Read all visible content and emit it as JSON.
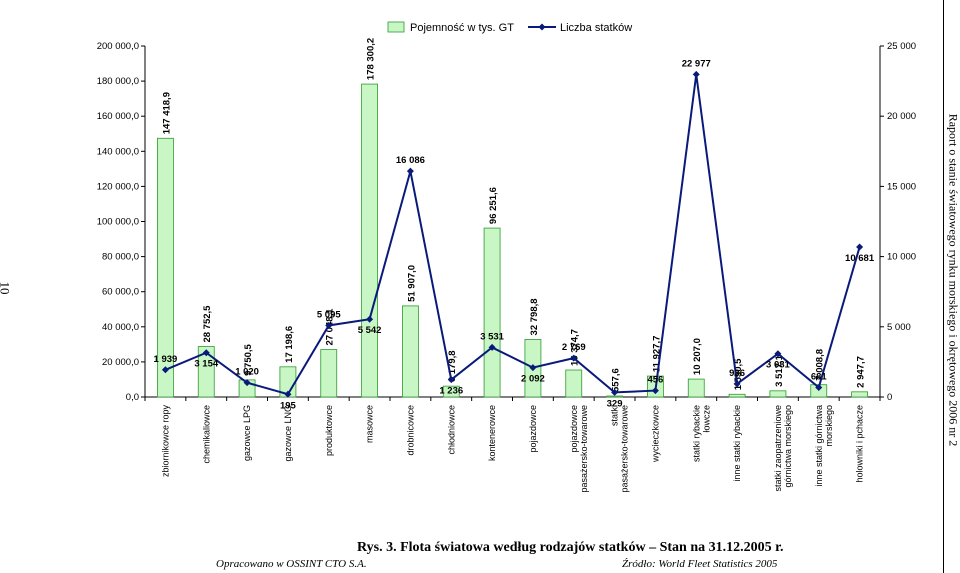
{
  "chart_data": {
    "type": "bar",
    "legend_position": "top",
    "categories": [
      "zbiornikowce ropy",
      "chemikaliowce",
      "gazowce LPG",
      "gazowce LNG",
      "produktowce",
      "masowce",
      "drobnicowce",
      "chłodniowce",
      "kontenerowce",
      "pojazdowce",
      "pojazdowce pasażersko-towarowe",
      "statki pasażersko-towarowe",
      "wycieczkowce",
      "statki rybackie łowcze",
      "inne statki rybackie",
      "statki zaopatrzeniowe górnictwa morskiego",
      "inne statki górnictwa morskiego",
      "holowniki i pchacze"
    ],
    "series": [
      {
        "name": "Pojemność w tys. GT",
        "type": "bar",
        "axis": "left",
        "color": "#c8f7c5",
        "edge": "#2e9a2e",
        "values": [
          147418.9,
          28752.5,
          9750.5,
          17198.6,
          27048.1,
          178300.2,
          51907.0,
          6179.8,
          96251.6,
          32798.8,
          15374.7,
          557.6,
          11927.7,
          10207.0,
          1550.5,
          3517.1,
          7008.8,
          2947.7
        ],
        "labels": [
          "147 418,9",
          "28 752,5",
          "9 750,5",
          "17 198,6",
          "27 048,1",
          "178 300,2",
          "51 907,0",
          "6 179,8",
          "96 251,6",
          "32 798,8",
          "15 374,7",
          "557,6",
          "11 927,7",
          "10 207,0",
          "1 550,5",
          "3 517,1",
          "7 008,8",
          "2 947,7"
        ]
      },
      {
        "name": "Liczba statków",
        "type": "line",
        "axis": "right",
        "color": "#0a1a7a",
        "values": [
          1939,
          3154,
          1020,
          195,
          5095,
          5542,
          16086,
          1236,
          3531,
          2092,
          2769,
          329,
          456,
          22977,
          936,
          3081,
          681,
          10681
        ],
        "labels": [
          "1 939",
          "3 154",
          "1 020",
          "195",
          "5 095",
          "5 542",
          "16 086",
          "1 236",
          "3 531",
          "2 092",
          "2 769",
          "329",
          "456",
          "22 977",
          "936",
          "3 081",
          "681",
          "10 681"
        ]
      }
    ],
    "y_left": {
      "min": 0,
      "max": 200000,
      "step": 20000,
      "ticks": [
        "0,0",
        "20 000,0",
        "40 000,0",
        "60 000,0",
        "80 000,0",
        "100 000,0",
        "120 000,0",
        "140 000,0",
        "160 000,0",
        "180 000,0",
        "200 000,0"
      ]
    },
    "y_right": {
      "min": 0,
      "max": 25000,
      "step": 5000,
      "ticks": [
        "0",
        "5 000",
        "10 000",
        "15 000",
        "20 000",
        "25 000"
      ]
    },
    "grid": false
  },
  "caption": "Rys. 3. Flota światowa według rodzajów statków – Stan na 31.12.2005 r.",
  "prepared_by": "Opracowano w OSSINT CTO S.A.",
  "source": "Źródło: World Fleet Statistics 2005",
  "page_number": "10",
  "running_head": "Raport o stanie światowego rynku morskiego i okrętowego 2006 nr 2"
}
